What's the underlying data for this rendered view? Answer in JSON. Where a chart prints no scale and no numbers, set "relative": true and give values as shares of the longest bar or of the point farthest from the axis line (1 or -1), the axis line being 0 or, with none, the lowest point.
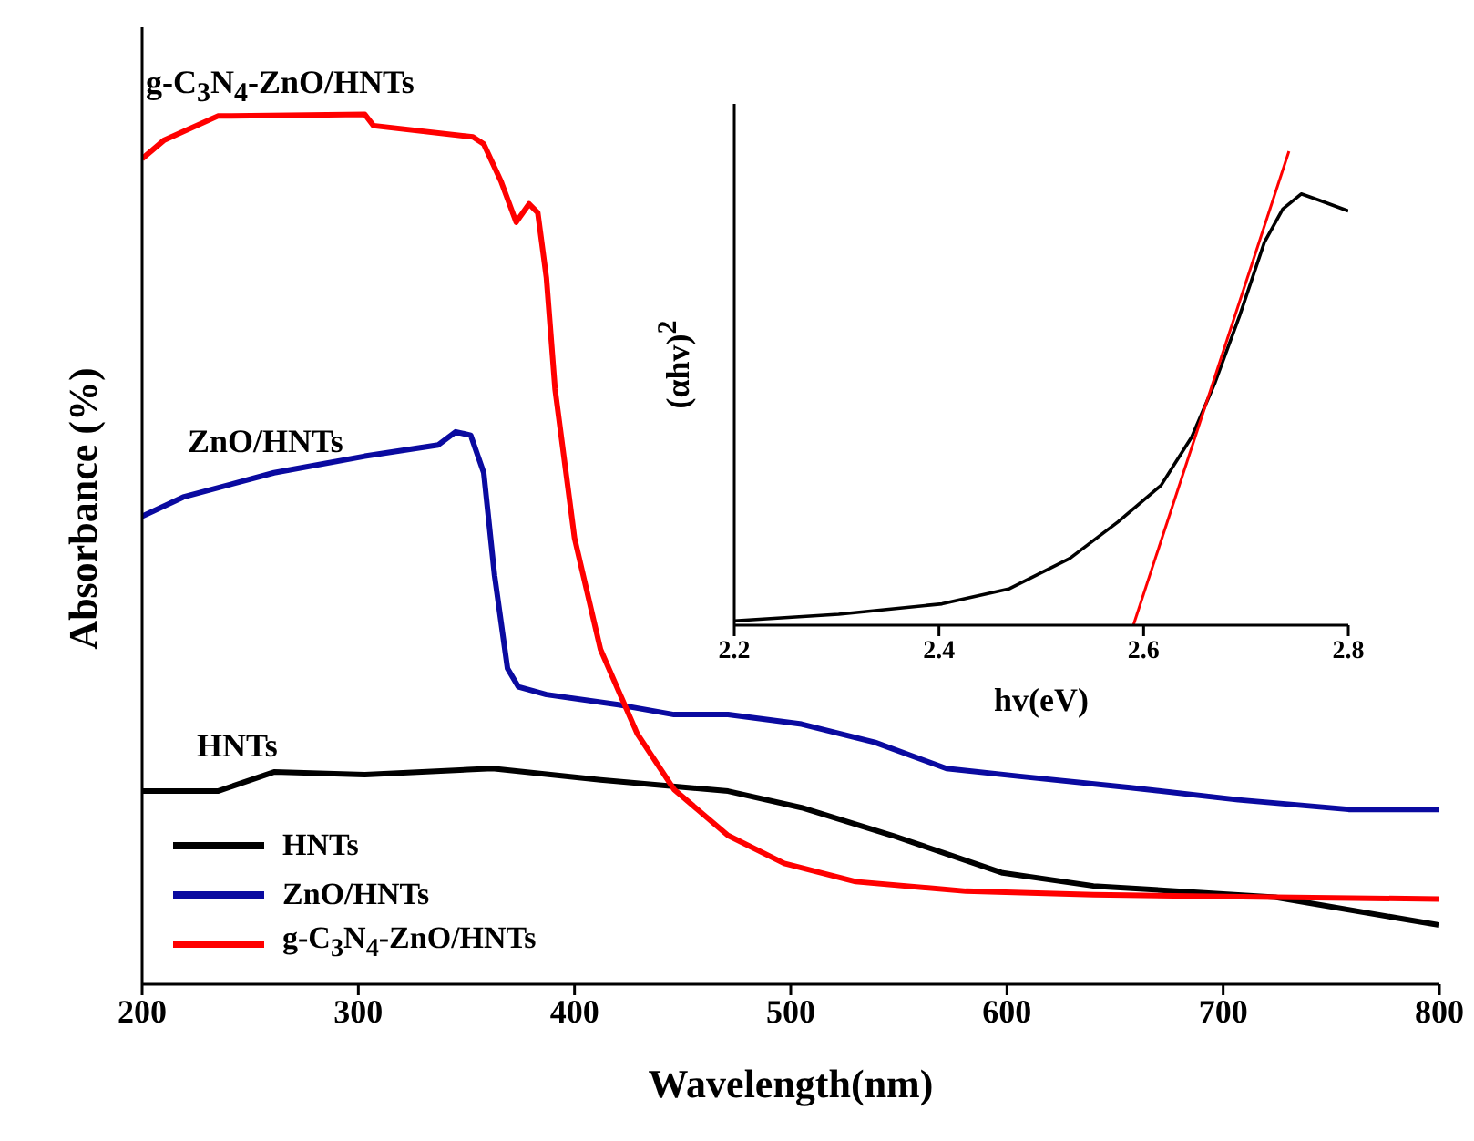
{
  "chart_data": [
    {
      "type": "line",
      "xlabel": "Wavelength(nm)",
      "ylabel": "Absorbance (%)",
      "relative": true,
      "xlim": [
        200,
        800
      ],
      "xticks": [
        200,
        300,
        400,
        500,
        600,
        700,
        800
      ],
      "tick_labels": "x",
      "legend": "bottom left",
      "annotations": [
        "g-C$_{3}$N$_{4}$-ZnO/HNTs",
        "ZnO/HNTs",
        "HNTs"
      ],
      "series": [
        {
          "name": "HNTs",
          "color": "#000000",
          "x": [
            200,
            235,
            261,
            303,
            362,
            412,
            471,
            505,
            547,
            572,
            598,
            640,
            724,
            800
          ],
          "values": [
            0.222,
            0.222,
            0.244,
            0.241,
            0.248,
            0.235,
            0.222,
            0.203,
            0.171,
            0.15,
            0.128,
            0.113,
            0.1,
            0.068
          ]
        },
        {
          "name": "ZnO/HNTs",
          "color": "#0a0aa0",
          "x": [
            200,
            219,
            261,
            303,
            337,
            345,
            352,
            358,
            363,
            369,
            374,
            387,
            421,
            446,
            471,
            505,
            539,
            572,
            606,
            657,
            707,
            758,
            800
          ],
          "values": [
            0.538,
            0.56,
            0.588,
            0.607,
            0.62,
            0.635,
            0.631,
            0.588,
            0.47,
            0.363,
            0.342,
            0.333,
            0.321,
            0.31,
            0.31,
            0.299,
            0.278,
            0.248,
            0.239,
            0.226,
            0.212,
            0.201,
            0.201
          ]
        },
        {
          "name": "g-C$_{3}$N$_{4}$-ZnO/HNTs",
          "color": "#ff0000",
          "x": [
            200,
            210,
            235,
            303,
            307,
            353,
            358,
            366,
            373,
            379,
            383,
            387,
            391,
            400,
            412,
            429,
            446,
            471,
            497,
            530,
            581,
            640,
            724,
            800
          ],
          "values": [
            0.949,
            0.97,
            0.998,
            1.0,
            0.987,
            0.974,
            0.966,
            0.923,
            0.876,
            0.897,
            0.887,
            0.812,
            0.684,
            0.513,
            0.385,
            0.288,
            0.224,
            0.171,
            0.139,
            0.118,
            0.107,
            0.103,
            0.1,
            0.098
          ]
        }
      ]
    },
    {
      "type": "line",
      "xlabel": "hv(eV)",
      "ylabel": "(αhv)$^{2}$",
      "relative": true,
      "xlim": [
        2.2,
        2.8
      ],
      "xticks": [
        2.2,
        2.4,
        2.6,
        2.8
      ],
      "tick_labels": "x",
      "series": [
        {
          "color": "#000000",
          "x": [
            2.2,
            2.302,
            2.403,
            2.469,
            2.528,
            2.575,
            2.617,
            2.647,
            2.67,
            2.694,
            2.718,
            2.736,
            2.754,
            2.771,
            2.8
          ],
          "values": [
            0.009,
            0.023,
            0.045,
            0.077,
            0.141,
            0.218,
            0.295,
            0.397,
            0.513,
            0.654,
            0.808,
            0.878,
            0.91,
            0.897,
            0.874
          ]
        },
        {
          "color": "#ff0000",
          "x": [
            2.59,
            2.742
          ],
          "values": [
            0,
            1
          ]
        }
      ]
    }
  ]
}
